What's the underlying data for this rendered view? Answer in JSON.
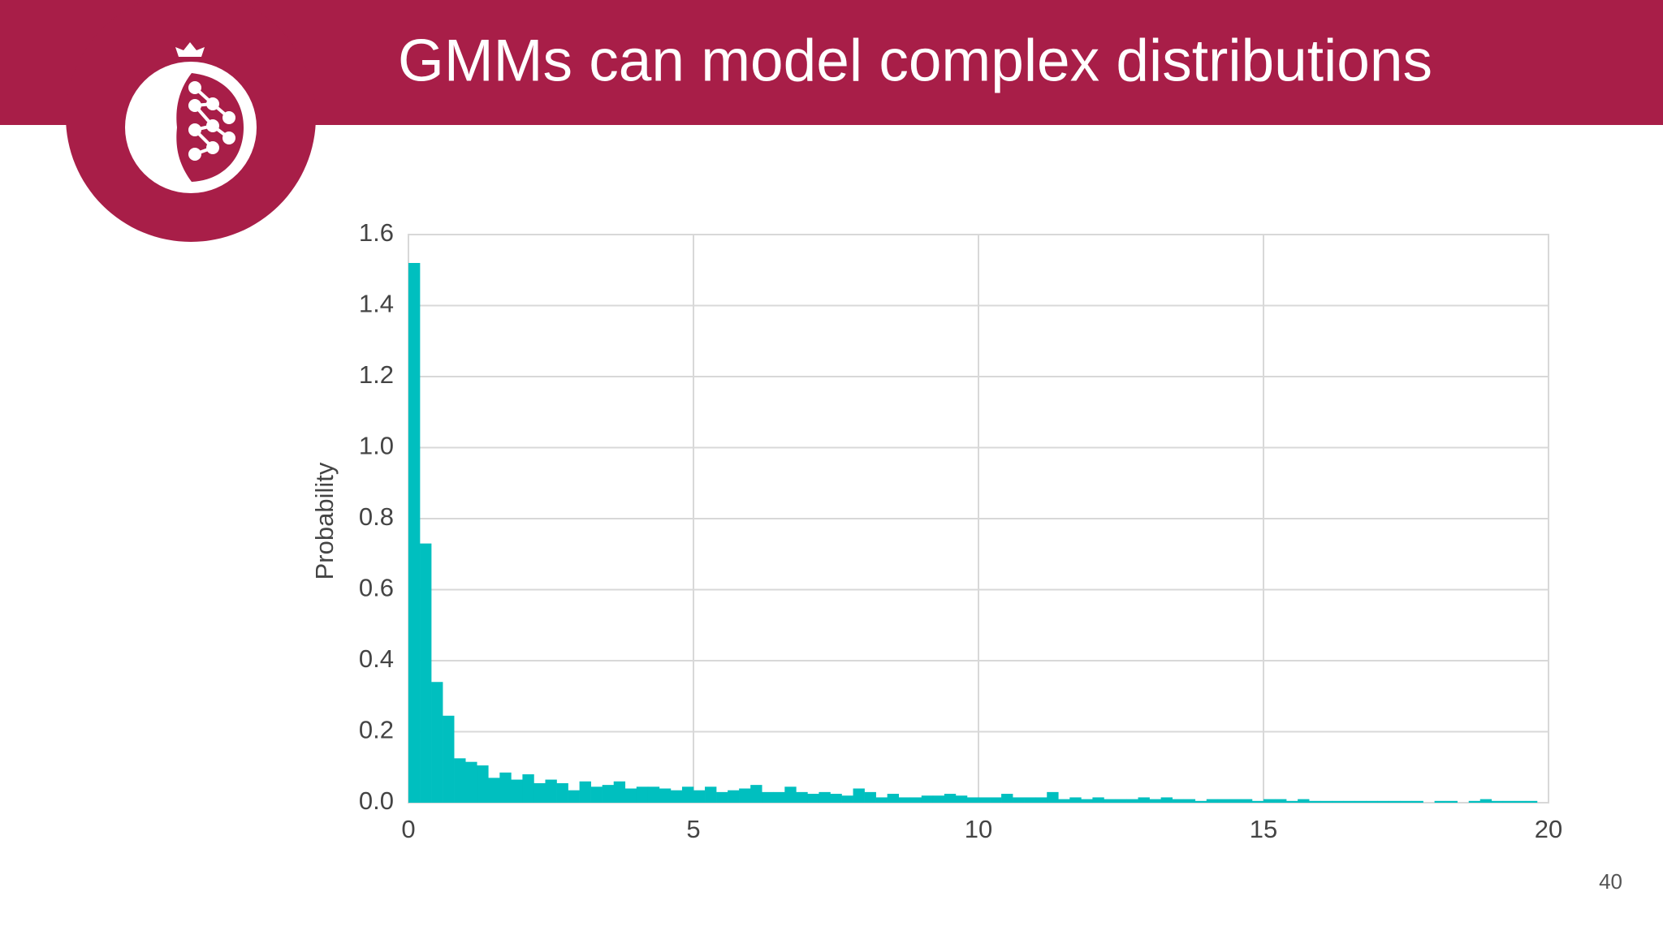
{
  "slide": {
    "title": "GMMs can model complex distributions",
    "page_number": "40"
  },
  "chart_data": {
    "type": "histogram",
    "ylabel": "Probability",
    "color": "#00bfbf",
    "grid": true,
    "xlim": [
      0,
      20
    ],
    "xticks": [
      0,
      5,
      10,
      15,
      20
    ],
    "ylim": [
      0,
      1.6
    ],
    "yticks": [
      {
        "value": 0,
        "label": "0.0"
      },
      0.2,
      0.4,
      0.6,
      0.8,
      {
        "value": 1,
        "label": "1.0"
      },
      1.2,
      1.4,
      1.6
    ],
    "bins": [
      0,
      0.2,
      0.4,
      0.6,
      0.8,
      1,
      1.2,
      1.4,
      1.6,
      1.8,
      2,
      2.2,
      2.4,
      2.6,
      2.8,
      3,
      3.2,
      3.4,
      3.6,
      3.8,
      4,
      4.2,
      4.4,
      4.6,
      4.8,
      5,
      5.2,
      5.4,
      5.6,
      5.8,
      6,
      6.2,
      6.4,
      6.6,
      6.8,
      7,
      7.2,
      7.4,
      7.6,
      7.8,
      8,
      8.2,
      8.4,
      8.6,
      8.8,
      9,
      9.2,
      9.4,
      9.6,
      9.8,
      10,
      10.2,
      10.4,
      10.6,
      10.8,
      11,
      11.2,
      11.4,
      11.6,
      11.8,
      12,
      12.2,
      12.4,
      12.6,
      12.8,
      13,
      13.2,
      13.4,
      13.6,
      13.8,
      14,
      14.2,
      14.4,
      14.6,
      14.8,
      15,
      15.2,
      15.4,
      15.6,
      15.8,
      16,
      16.2,
      16.4,
      16.6,
      16.8,
      17,
      17.2,
      17.4,
      17.6,
      17.8,
      18,
      18.2,
      18.4,
      18.6,
      18.8,
      19,
      19.2,
      19.4,
      19.6,
      19.8,
      20
    ],
    "values": [
      1.52,
      0.73,
      0.34,
      0.245,
      0.125,
      0.115,
      0.105,
      0.07,
      0.085,
      0.065,
      0.08,
      0.055,
      0.065,
      0.055,
      0.035,
      0.06,
      0.045,
      0.05,
      0.06,
      0.04,
      0.045,
      0.045,
      0.04,
      0.035,
      0.045,
      0.035,
      0.045,
      0.03,
      0.035,
      0.04,
      0.05,
      0.03,
      0.03,
      0.045,
      0.03,
      0.025,
      0.03,
      0.025,
      0.02,
      0.04,
      0.03,
      0.015,
      0.025,
      0.015,
      0.015,
      0.02,
      0.02,
      0.025,
      0.02,
      0.015,
      0.015,
      0.015,
      0.025,
      0.015,
      0.015,
      0.015,
      0.03,
      0.01,
      0.015,
      0.01,
      0.015,
      0.01,
      0.01,
      0.01,
      0.015,
      0.01,
      0.015,
      0.01,
      0.01,
      0.005,
      0.01,
      0.01,
      0.01,
      0.01,
      0.005,
      0.01,
      0.01,
      0.005,
      0.01,
      0.005,
      0.005,
      0.005,
      0.005,
      0.005,
      0.005,
      0.005,
      0.005,
      0.005,
      0.005,
      0,
      0.005,
      0.005,
      0,
      0.005,
      0.01,
      0.005,
      0.005,
      0.005,
      0.005,
      0
    ]
  }
}
